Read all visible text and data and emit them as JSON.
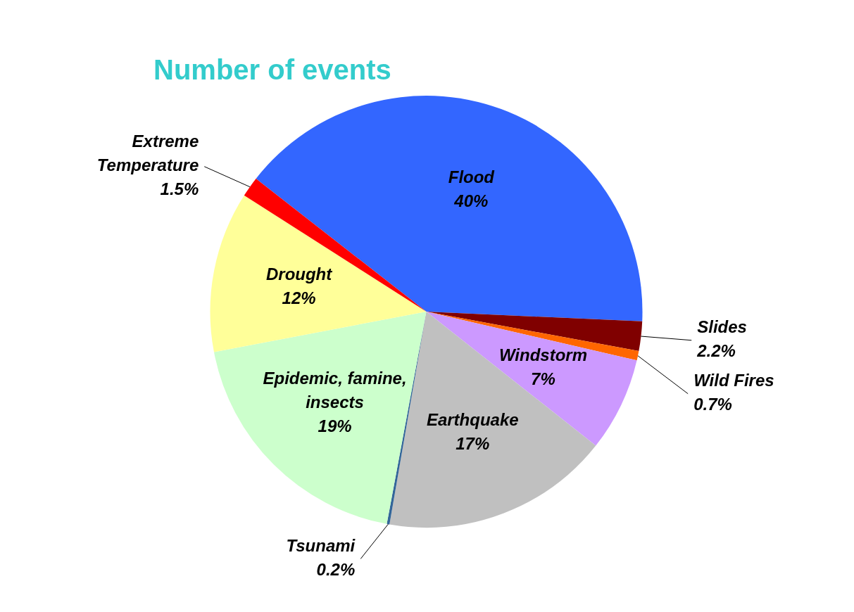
{
  "chart_data": {
    "type": "pie",
    "title": "Number of events",
    "categories": [
      "Flood",
      "Slides",
      "Wild Fires",
      "Windstorm",
      "Earthquake",
      "Tsunami",
      "Epidemic, famine, insects",
      "Drought",
      "Extreme Temperature"
    ],
    "values": [
      40,
      2.2,
      0.7,
      7,
      17,
      0.2,
      19,
      12,
      1.5
    ],
    "value_labels": [
      "40%",
      "2.2%",
      "0.7%",
      "7%",
      "17%",
      "0.2%",
      "19%",
      "12%",
      "1.5%"
    ],
    "colors": [
      "#3366ff",
      "#800000",
      "#ff6600",
      "#cc99ff",
      "#c0c0c0",
      "#336699",
      "#ccffcc",
      "#ffff99",
      "#ff0000"
    ],
    "legend": false
  }
}
